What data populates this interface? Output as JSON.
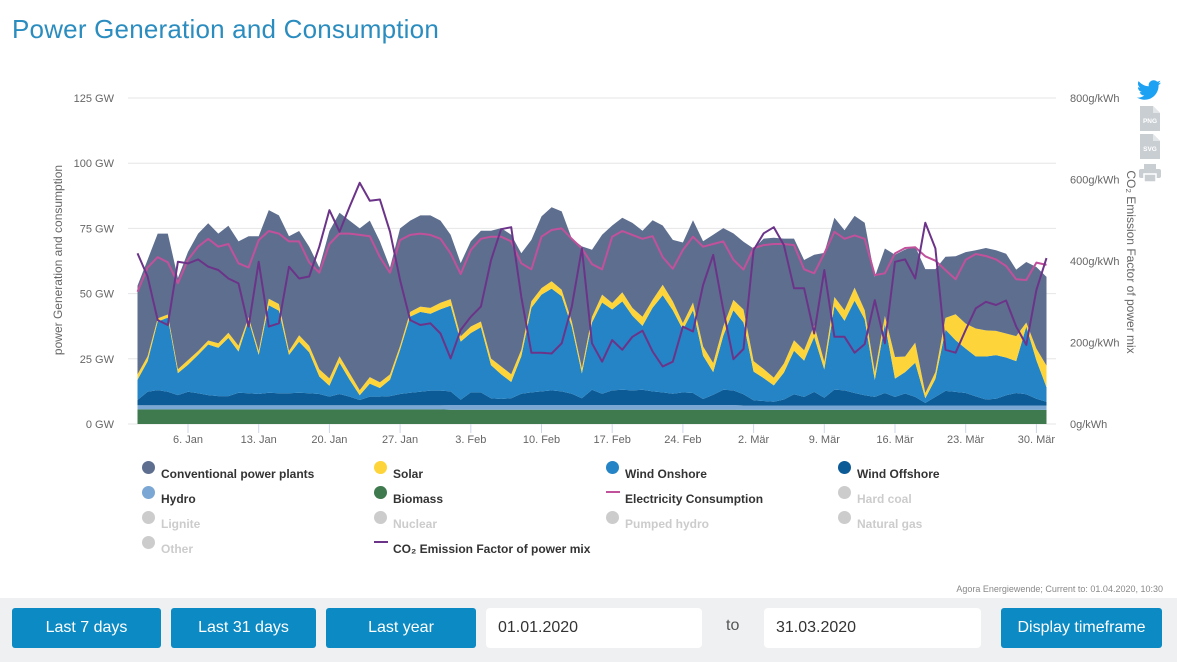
{
  "title": "Power Generation and Consumption",
  "tools": {
    "twitter_icon": "twitter-icon",
    "png_label": "PNG",
    "svg_label": "SVG",
    "print_icon": "print-icon",
    "twitter_color": "#1da1f2",
    "icon_color": "#c9ced3"
  },
  "chart_data": {
    "type": "area",
    "stacked": true,
    "title": "Power Generation and Consumption",
    "x": [
      "2020-01-01",
      "2020-01-02",
      "2020-01-03",
      "2020-01-04",
      "2020-01-05",
      "2020-01-06",
      "2020-01-07",
      "2020-01-08",
      "2020-01-09",
      "2020-01-10",
      "2020-01-11",
      "2020-01-12",
      "2020-01-13",
      "2020-01-14",
      "2020-01-15",
      "2020-01-16",
      "2020-01-17",
      "2020-01-18",
      "2020-01-19",
      "2020-01-20",
      "2020-01-21",
      "2020-01-22",
      "2020-01-23",
      "2020-01-24",
      "2020-01-25",
      "2020-01-26",
      "2020-01-27",
      "2020-01-28",
      "2020-01-29",
      "2020-01-30",
      "2020-01-31",
      "2020-02-01",
      "2020-02-02",
      "2020-02-03",
      "2020-02-04",
      "2020-02-05",
      "2020-02-06",
      "2020-02-07",
      "2020-02-08",
      "2020-02-09",
      "2020-02-10",
      "2020-02-11",
      "2020-02-12",
      "2020-02-13",
      "2020-02-14",
      "2020-02-15",
      "2020-02-16",
      "2020-02-17",
      "2020-02-18",
      "2020-02-19",
      "2020-02-20",
      "2020-02-21",
      "2020-02-22",
      "2020-02-23",
      "2020-02-24",
      "2020-02-25",
      "2020-02-26",
      "2020-02-27",
      "2020-02-28",
      "2020-02-29",
      "2020-03-01",
      "2020-03-02",
      "2020-03-03",
      "2020-03-04",
      "2020-03-05",
      "2020-03-06",
      "2020-03-07",
      "2020-03-08",
      "2020-03-09",
      "2020-03-10",
      "2020-03-11",
      "2020-03-12",
      "2020-03-13",
      "2020-03-14",
      "2020-03-15",
      "2020-03-16",
      "2020-03-17",
      "2020-03-18",
      "2020-03-19",
      "2020-03-20",
      "2020-03-21",
      "2020-03-22",
      "2020-03-23",
      "2020-03-24",
      "2020-03-25",
      "2020-03-26",
      "2020-03-27",
      "2020-03-28",
      "2020-03-29",
      "2020-03-30",
      "2020-03-31"
    ],
    "x_ticks": [
      {
        "date": "2020-01-06",
        "label": "6. Jan"
      },
      {
        "date": "2020-01-13",
        "label": "13. Jan"
      },
      {
        "date": "2020-01-20",
        "label": "20. Jan"
      },
      {
        "date": "2020-01-27",
        "label": "27. Jan"
      },
      {
        "date": "2020-02-03",
        "label": "3. Feb"
      },
      {
        "date": "2020-02-10",
        "label": "10. Feb"
      },
      {
        "date": "2020-02-17",
        "label": "17. Feb"
      },
      {
        "date": "2020-02-24",
        "label": "24. Feb"
      },
      {
        "date": "2020-03-02",
        "label": "2. Mär"
      },
      {
        "date": "2020-03-09",
        "label": "9. Mär"
      },
      {
        "date": "2020-03-16",
        "label": "16. Mär"
      },
      {
        "date": "2020-03-23",
        "label": "23. Mär"
      },
      {
        "date": "2020-03-30",
        "label": "30. Mär"
      }
    ],
    "y_axis_left": {
      "title": "power Generation and consumption",
      "unit": "GW",
      "min": 0,
      "max": 125,
      "ticks": [
        {
          "value": 0,
          "label": "0 GW"
        },
        {
          "value": 25,
          "label": "25 GW"
        },
        {
          "value": 50,
          "label": "50 GW"
        },
        {
          "value": 75,
          "label": "75 GW"
        },
        {
          "value": 100,
          "label": "100 GW"
        },
        {
          "value": 125,
          "label": "125 GW"
        }
      ]
    },
    "y_axis_right": {
      "title": "CO₂ Emission Factor of power mix",
      "unit": "g/kWh",
      "min": 0,
      "max": 800,
      "ticks": [
        {
          "value": 0,
          "label": "0g/kWh"
        },
        {
          "value": 200,
          "label": "200g/kWh"
        },
        {
          "value": 400,
          "label": "400g/kWh"
        },
        {
          "value": 600,
          "label": "600g/kWh"
        },
        {
          "value": 800,
          "label": "800g/kWh"
        }
      ]
    },
    "grid": true,
    "legend_position": "bottom",
    "series": [
      {
        "name": "Biomass",
        "type": "area",
        "axis": "left",
        "color": "#3e7a4e",
        "values": [
          5.6,
          5.6,
          5.6,
          5.6,
          5.6,
          5.6,
          5.6,
          5.6,
          5.6,
          5.6,
          5.6,
          5.6,
          5.6,
          5.6,
          5.6,
          5.6,
          5.6,
          5.6,
          5.6,
          5.6,
          5.6,
          5.6,
          5.6,
          5.6,
          5.6,
          5.6,
          5.6,
          5.6,
          5.6,
          5.6,
          5.6,
          5.5,
          5.5,
          5.5,
          5.5,
          5.5,
          5.5,
          5.5,
          5.5,
          5.5,
          5.5,
          5.5,
          5.5,
          5.5,
          5.5,
          5.5,
          5.5,
          5.5,
          5.5,
          5.5,
          5.5,
          5.5,
          5.5,
          5.5,
          5.5,
          5.5,
          5.5,
          5.5,
          5.5,
          5.5,
          5.4,
          5.4,
          5.4,
          5.4,
          5.4,
          5.4,
          5.4,
          5.4,
          5.4,
          5.4,
          5.4,
          5.4,
          5.4,
          5.4,
          5.4,
          5.4,
          5.4,
          5.4,
          5.4,
          5.4,
          5.4,
          5.4,
          5.4,
          5.4,
          5.4,
          5.4,
          5.4,
          5.4,
          5.4,
          5.4,
          5.4
        ]
      },
      {
        "name": "Hydro",
        "type": "area",
        "axis": "left",
        "color": "#7aa7d3",
        "values": [
          1.6,
          1.6,
          1.6,
          1.6,
          1.6,
          1.6,
          1.6,
          1.6,
          1.6,
          1.6,
          1.6,
          1.6,
          1.6,
          1.6,
          1.6,
          1.6,
          1.6,
          1.6,
          1.6,
          1.6,
          1.6,
          1.6,
          1.6,
          1.6,
          1.6,
          1.6,
          1.6,
          1.6,
          1.6,
          1.6,
          1.6,
          1.8,
          1.8,
          1.8,
          1.8,
          1.8,
          1.8,
          1.8,
          1.8,
          1.8,
          1.8,
          1.8,
          1.8,
          1.8,
          1.8,
          1.8,
          1.8,
          1.8,
          1.8,
          1.8,
          1.8,
          1.8,
          1.8,
          1.8,
          1.8,
          1.8,
          1.8,
          1.8,
          1.8,
          1.8,
          1.7,
          1.7,
          1.7,
          1.7,
          1.7,
          1.7,
          1.7,
          1.7,
          1.7,
          1.7,
          1.7,
          1.7,
          1.7,
          1.7,
          1.7,
          1.7,
          1.7,
          1.7,
          1.7,
          1.7,
          1.7,
          1.7,
          1.7,
          1.7,
          1.7,
          1.7,
          1.7,
          1.7,
          1.7,
          1.7,
          1.7
        ]
      },
      {
        "name": "Wind Offshore",
        "type": "area",
        "axis": "left",
        "color": "#0d5b96",
        "values": [
          2.0,
          5.2,
          5.8,
          5.2,
          3.9,
          5.2,
          4.6,
          3.9,
          3.5,
          3.5,
          4.8,
          4.6,
          4.3,
          4.8,
          4.6,
          4.6,
          4.8,
          4.6,
          4.3,
          3.3,
          4.3,
          3.3,
          2.0,
          3.3,
          3.3,
          3.5,
          4.3,
          4.8,
          5.2,
          5.6,
          5.6,
          5.2,
          2.0,
          4.8,
          4.8,
          2.6,
          2.3,
          2.6,
          4.3,
          4.8,
          5.2,
          5.6,
          5.2,
          4.3,
          2.6,
          5.8,
          4.3,
          5.6,
          5.8,
          5.6,
          5.8,
          5.2,
          4.8,
          4.3,
          4.8,
          4.6,
          2.3,
          3.9,
          5.8,
          5.6,
          4.3,
          2.0,
          1.7,
          1.4,
          2.3,
          4.3,
          3.3,
          5.2,
          3.0,
          6.1,
          5.8,
          4.8,
          3.9,
          3.3,
          4.8,
          3.3,
          4.6,
          3.3,
          1.0,
          3.3,
          5.6,
          5.2,
          4.8,
          3.5,
          2.3,
          2.6,
          3.9,
          4.8,
          4.3,
          2.6,
          1.4
        ]
      },
      {
        "name": "Wind Onshore",
        "type": "area",
        "axis": "left",
        "color": "#2584c5",
        "values": [
          7.8,
          11.6,
          26.3,
          28.4,
          8.4,
          10.3,
          14.7,
          19.4,
          18.5,
          22.3,
          15.8,
          28.0,
          15.0,
          33.5,
          31.7,
          14.7,
          19.5,
          15.7,
          6.7,
          4.2,
          12.0,
          6.5,
          1.8,
          5.0,
          3.3,
          6.3,
          17.0,
          29.2,
          30.6,
          29.5,
          31.2,
          32.9,
          22.3,
          22.8,
          25.0,
          12.7,
          9.5,
          6.2,
          14.4,
          32.5,
          37.1,
          39.0,
          36.5,
          25.7,
          9.5,
          25.8,
          35.0,
          31.0,
          33.9,
          28.6,
          24.5,
          32.1,
          37.3,
          32.0,
          24.1,
          31.7,
          16.6,
          8.7,
          20.8,
          30.7,
          27.5,
          11.0,
          8.8,
          6.3,
          10.3,
          16.7,
          13.9,
          21.1,
          10.8,
          32.0,
          26.7,
          35.4,
          29.1,
          6.5,
          26.5,
          7.0,
          8.2,
          13.1,
          1.8,
          6.9,
          23.5,
          19.8,
          17.0,
          15.3,
          16.5,
          16.7,
          14.5,
          12.2,
          26.0,
          14.7,
          5.6
        ]
      },
      {
        "name": "Solar",
        "type": "area",
        "axis": "left",
        "color": "#fdd53a",
        "values": [
          2.0,
          2.0,
          1.2,
          1.2,
          1.5,
          1.8,
          1.5,
          1.5,
          1.8,
          2.0,
          2.2,
          1.2,
          1.5,
          2.5,
          2.5,
          1.5,
          2.5,
          2.5,
          2.8,
          2.8,
          2.5,
          2.5,
          2.0,
          2.5,
          2.2,
          2.0,
          1.5,
          1.8,
          2.0,
          2.2,
          2.5,
          2.5,
          2.0,
          2.5,
          2.2,
          2.5,
          3.0,
          3.0,
          2.5,
          2.5,
          2.5,
          2.8,
          2.5,
          2.0,
          2.0,
          2.2,
          3.0,
          2.5,
          3.5,
          3.0,
          3.5,
          3.0,
          4.0,
          3.5,
          2.5,
          3.0,
          3.5,
          3.5,
          3.5,
          4.0,
          5.0,
          4.0,
          3.5,
          3.0,
          3.5,
          4.0,
          4.0,
          4.5,
          3.0,
          3.5,
          4.0,
          5.0,
          3.5,
          3.0,
          3.0,
          8.3,
          6.0,
          7.7,
          2.0,
          2.6,
          4.5,
          10.0,
          9.6,
          10.7,
          10.0,
          9.3,
          9.2,
          9.6,
          1.5,
          4.5,
          8.3
        ]
      },
      {
        "name": "Conventional power plants",
        "type": "area",
        "axis": "left",
        "color": "#5e6e8f",
        "values": [
          34,
          37,
          32.5,
          31,
          35,
          41.5,
          45,
          45,
          42,
          41,
          40,
          31,
          44,
          34,
          34,
          44,
          40,
          38,
          39,
          56.5,
          55,
          58.5,
          62,
          60,
          54,
          41,
          45,
          35,
          35,
          35.5,
          31.5,
          24.7,
          28.1,
          32.7,
          34.8,
          49,
          53,
          53.5,
          37,
          23.5,
          27.5,
          28.4,
          30,
          31.8,
          46.7,
          25.7,
          23,
          29.7,
          28.6,
          32.6,
          33,
          30.5,
          22.7,
          23.5,
          30.9,
          31.5,
          40.4,
          49.2,
          37.7,
          25.5,
          26,
          43.2,
          50,
          53.6,
          47.9,
          39,
          34.6,
          27,
          41.7,
          30.4,
          30.7,
          27.5,
          33.6,
          36.5,
          25.9,
          39.2,
          41,
          36.9,
          47.5,
          39.5,
          23.4,
          22.2,
          27.4,
          30,
          31.6,
          30.9,
          30.6,
          25.5,
          23.2,
          31.3,
          34
        ]
      },
      {
        "name": "Electricity Consumption",
        "type": "line",
        "axis": "left",
        "color": "#c2519b",
        "values": [
          50.7,
          60,
          64,
          62,
          54,
          63,
          68,
          71,
          68,
          69,
          61.6,
          60,
          70.5,
          74,
          73,
          70,
          70,
          62,
          58,
          69,
          73,
          73,
          72.5,
          72,
          64,
          58,
          70.5,
          72.5,
          73,
          72.5,
          71,
          65.4,
          57.5,
          66.7,
          71,
          71.8,
          71.8,
          70,
          61.6,
          59.3,
          71.8,
          74.4,
          75,
          71,
          67.3,
          61.3,
          59.3,
          71.8,
          74,
          72.5,
          71,
          72,
          64,
          59.5,
          66.7,
          71.8,
          68,
          69,
          70,
          63,
          59.2,
          67.4,
          68.6,
          69,
          69,
          68.6,
          59.3,
          57.8,
          65.4,
          73.7,
          71,
          72.3,
          71,
          57.1,
          57.8,
          65.4,
          67.5,
          67.8,
          64.3,
          62.6,
          59,
          55.5,
          63,
          65.2,
          64.4,
          63.1,
          60.6,
          55.5,
          55.2,
          61.9,
          61
        ]
      },
      {
        "name": "CO₂ Emission Factor of power mix",
        "type": "line",
        "axis": "right",
        "color": "#6c3489",
        "values": [
          419,
          362,
          255,
          243,
          398,
          394,
          404,
          386,
          378,
          357,
          345,
          239,
          398,
          239,
          247,
          386,
          357,
          362,
          435,
          525,
          472,
          533,
          592,
          548,
          551,
          472,
          353,
          255,
          243,
          247,
          222,
          161,
          231,
          263,
          288,
          402,
          478,
          483,
          312,
          175,
          175,
          173,
          198,
          288,
          431,
          198,
          153,
          206,
          182,
          214,
          229,
          178,
          141,
          153,
          239,
          227,
          341,
          415,
          280,
          159,
          184,
          427,
          468,
          483,
          439,
          333,
          333,
          222,
          378,
          214,
          214,
          175,
          196,
          304,
          198,
          398,
          404,
          357,
          494,
          431,
          182,
          175,
          231,
          284,
          300,
          292,
          303,
          239,
          194,
          329,
          407
        ]
      }
    ],
    "legend": {
      "items": [
        {
          "label": "Conventional power plants",
          "marker": "circle",
          "color": "#5e6e8f",
          "enabled": true
        },
        {
          "label": "Solar",
          "marker": "circle",
          "color": "#fdd53a",
          "enabled": true
        },
        {
          "label": "Wind Onshore",
          "marker": "circle",
          "color": "#2584c5",
          "enabled": true
        },
        {
          "label": "Wind Offshore",
          "marker": "circle",
          "color": "#0d5b96",
          "enabled": true
        },
        {
          "label": "Hydro",
          "marker": "circle",
          "color": "#7aa7d3",
          "enabled": true
        },
        {
          "label": "Biomass",
          "marker": "circle",
          "color": "#3e7a4e",
          "enabled": true
        },
        {
          "label": "Electricity Consumption",
          "marker": "line",
          "color": "#c2519b",
          "enabled": true
        },
        {
          "label": "Hard coal",
          "marker": "circle",
          "color": "#cccccc",
          "enabled": false
        },
        {
          "label": "Lignite",
          "marker": "circle",
          "color": "#cccccc",
          "enabled": false
        },
        {
          "label": "Nuclear",
          "marker": "circle",
          "color": "#cccccc",
          "enabled": false
        },
        {
          "label": "Pumped hydro",
          "marker": "circle",
          "color": "#cccccc",
          "enabled": false
        },
        {
          "label": "Natural gas",
          "marker": "circle",
          "color": "#cccccc",
          "enabled": false
        },
        {
          "label": "Other",
          "marker": "circle",
          "color": "#cccccc",
          "enabled": false
        },
        {
          "label": "CO₂ Emission Factor of power mix",
          "marker": "line",
          "color": "#6c3489",
          "enabled": true
        }
      ]
    }
  },
  "credit": "Agora Energiewende; Current to: 01.04.2020, 10:30",
  "timeframe": {
    "last7_label": "Last 7 days",
    "last31_label": "Last 31 days",
    "last_year_label": "Last year",
    "from_value": "01.01.2020",
    "to_label": "to",
    "to_value": "31.03.2020",
    "display_label": "Display timeframe",
    "button_color": "#0b8ac3"
  }
}
